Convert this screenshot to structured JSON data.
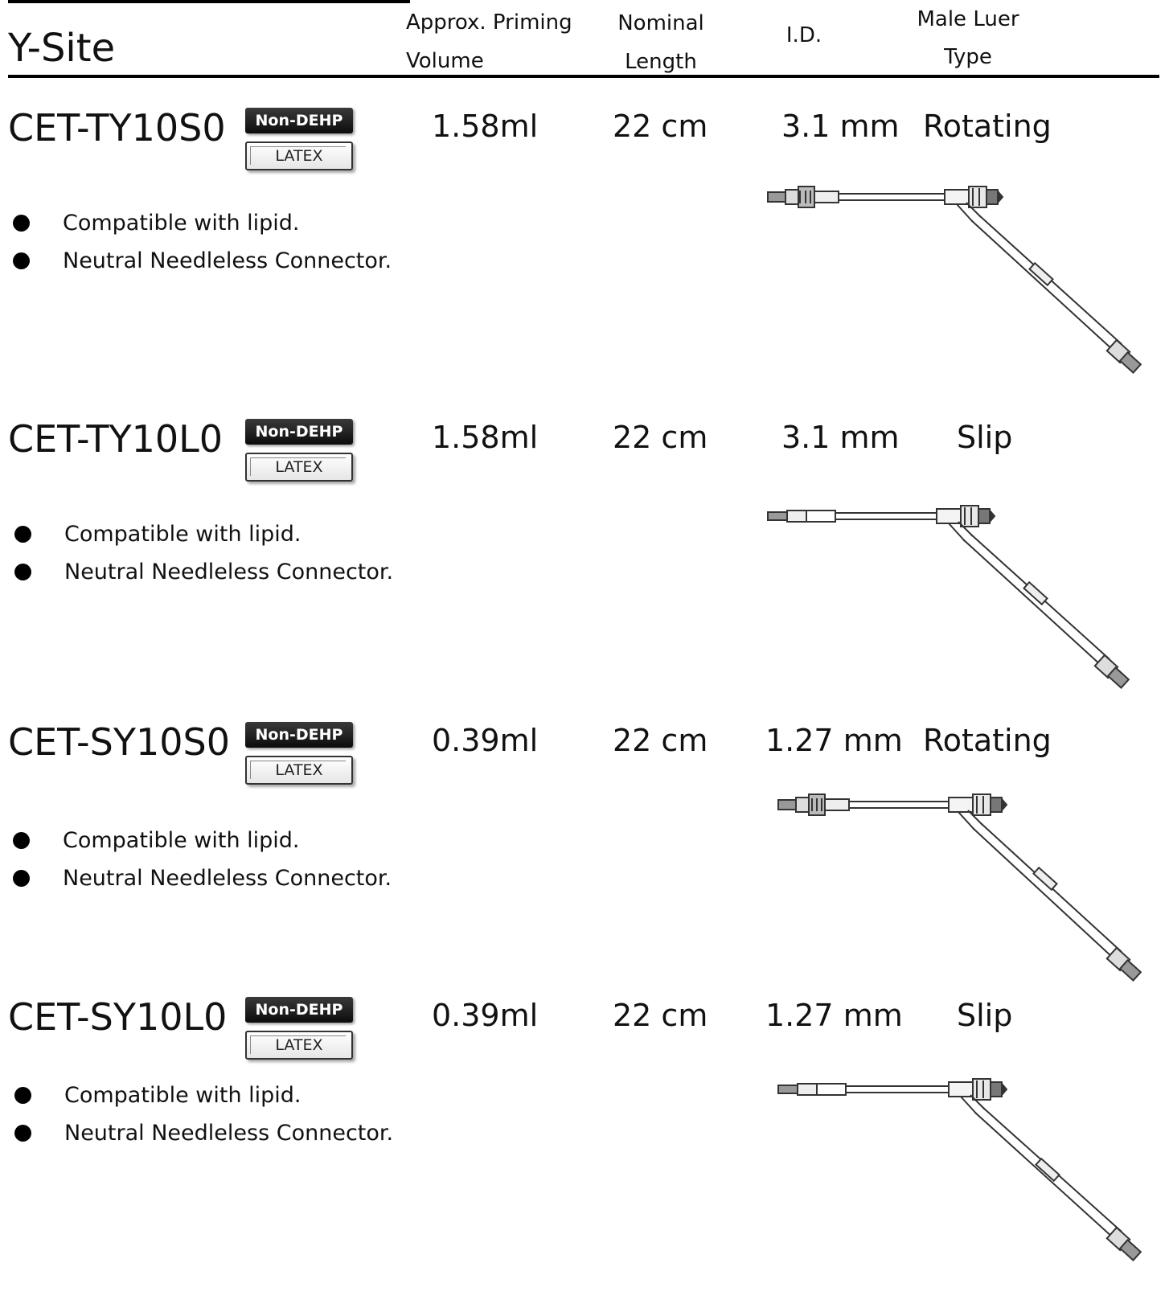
{
  "section": {
    "title": "Y-Site"
  },
  "columns": {
    "priming_line1": "Approx. Priming",
    "priming_line2": "Volume",
    "length_line1": "Nominal",
    "length_line2": "Length",
    "id": "I.D.",
    "luer_line1": "Male Luer",
    "luer_line2": "Type"
  },
  "products": [
    {
      "code": "CET-TY10S0",
      "badge_dehp": "Non-DEHP",
      "badge_latex": "LATEX",
      "priming": "1.58ml",
      "length": "22 cm",
      "id": "3.1 mm",
      "luer": "Rotating",
      "features": [
        "Compatible with lipid.",
        "Neutral Needleless Connector."
      ],
      "diagram_icon": "y-site-extension-set-rotating-icon"
    },
    {
      "code": "CET-TY10L0",
      "badge_dehp": "Non-DEHP",
      "badge_latex": "LATEX",
      "priming": "1.58ml",
      "length": "22 cm",
      "id": "3.1 mm",
      "luer": "Slip",
      "features": [
        "Compatible with lipid.",
        "Neutral Needleless Connector."
      ],
      "diagram_icon": "y-site-extension-set-slip-icon"
    },
    {
      "code": "CET-SY10S0",
      "badge_dehp": "Non-DEHP",
      "badge_latex": "LATEX",
      "priming": "0.39ml",
      "length": "22 cm",
      "id": "1.27 mm",
      "luer": "Rotating",
      "features": [
        "Compatible with lipid.",
        "Neutral Needleless Connector."
      ],
      "diagram_icon": "y-site-extension-set-rotating-icon"
    },
    {
      "code": "CET-SY10L0",
      "badge_dehp": "Non-DEHP",
      "badge_latex": "LATEX",
      "priming": "0.39ml",
      "length": "22 cm",
      "id": "1.27 mm",
      "luer": "Slip",
      "features": [
        "Compatible with lipid.",
        "Neutral Needleless Connector."
      ],
      "diagram_icon": "y-site-extension-set-slip-icon"
    }
  ]
}
